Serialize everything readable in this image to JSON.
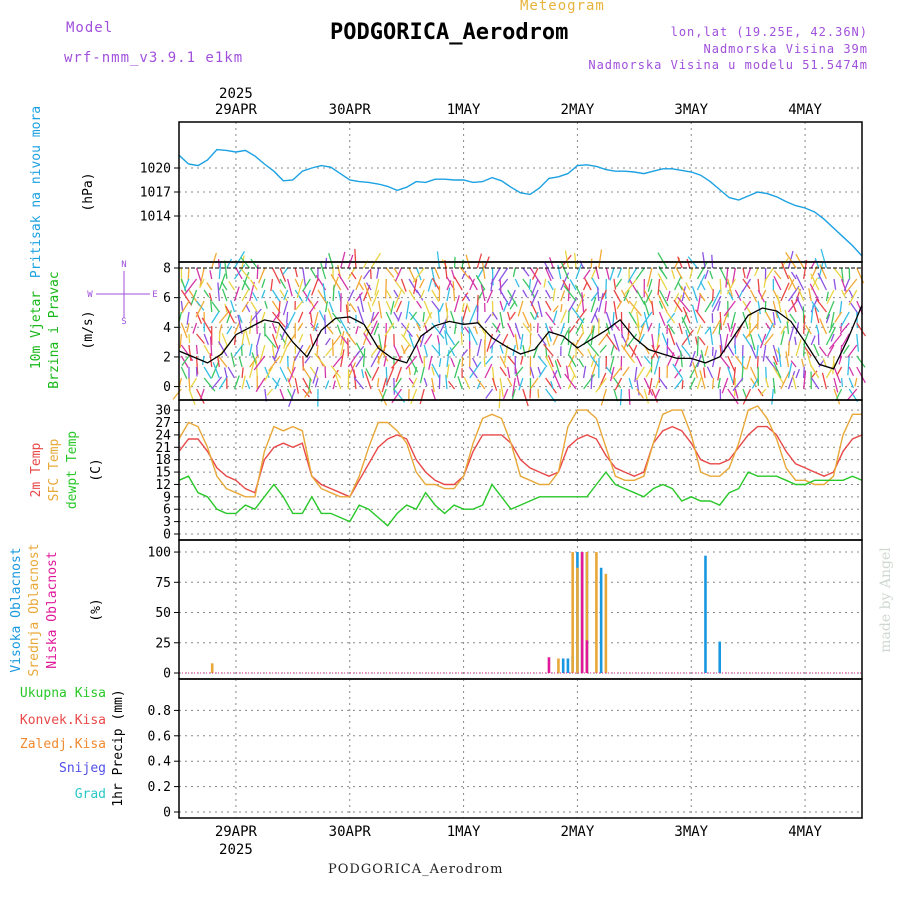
{
  "header": {
    "title": "PODGORICA_Aerodrom",
    "subtitle": "Meteogram",
    "model_label": "Model",
    "model_name": "wrf-nmm_v3.9.1 e1km",
    "coords": "lon,lat (19.25E, 42.36N)",
    "elevation": "Nadmorska Visina 39m",
    "model_elevation": "Nadmorska Visina u modelu 51.5474m"
  },
  "footer": {
    "station": "PODGORICA_Aerodrom",
    "credit": "made by Angel"
  },
  "colors": {
    "pressure": "#1ba1e2",
    "wind_speed": "#000000",
    "wind_label": "#18b818",
    "t2m": "#e84848",
    "tsfc": "#e8a838",
    "dewpt": "#28c828",
    "cloud_high": "#1898e0",
    "cloud_mid": "#e8a838",
    "cloud_low": "#e0189a",
    "precip_total": "#28c828",
    "precip_conv": "#e84848",
    "precip_frozen": "#f08a30",
    "precip_snow": "#5050e8",
    "precip_grad": "#28c8c8",
    "wind_compass": "#a050dc"
  },
  "chart_data": {
    "time_axis": {
      "start": "2025-04-28T12:00",
      "end": "2025-05-04T12:00",
      "year": "2025",
      "day_labels": [
        "29APR",
        "30APR",
        "1MAY",
        "2MAY",
        "3MAY",
        "4MAY"
      ],
      "day_times": [
        12,
        36,
        60,
        84,
        108,
        132
      ]
    },
    "panels": [
      {
        "id": "pressure",
        "type": "line",
        "ylabel": [
          "Pritisak na nivou mora",
          "(hPa)"
        ],
        "ylim": [
          1009,
          1025
        ],
        "yticks": [
          1014,
          1017,
          1020
        ],
        "series": [
          {
            "color_key": "pressure",
            "x": [
              0,
              2,
              4,
              6,
              8,
              10,
              12,
              14,
              16,
              18,
              20,
              22,
              24,
              26,
              28,
              30,
              32,
              34,
              36,
              38,
              40,
              42,
              44,
              46,
              48,
              50,
              52,
              54,
              56,
              58,
              60,
              62,
              64,
              66,
              68,
              70,
              72,
              74,
              76,
              78,
              80,
              82,
              84,
              86,
              88,
              90,
              92,
              94,
              96,
              98,
              100,
              102,
              104,
              106,
              108,
              110,
              112,
              114,
              116,
              118,
              120,
              122,
              124,
              126,
              128,
              130,
              132,
              134,
              136,
              138,
              140,
              142,
              144
            ],
            "values": [
              1021.6,
              1020.5,
              1020.3,
              1021.0,
              1022.3,
              1022.2,
              1022.0,
              1022.2,
              1021.5,
              1020.5,
              1019.6,
              1018.4,
              1018.5,
              1019.6,
              1020.0,
              1020.3,
              1020.1,
              1019.3,
              1018.5,
              1018.3,
              1018.2,
              1018.0,
              1017.7,
              1017.2,
              1017.6,
              1018.3,
              1018.2,
              1018.6,
              1018.6,
              1018.5,
              1018.5,
              1018.2,
              1018.3,
              1018.8,
              1018.4,
              1017.6,
              1016.9,
              1016.7,
              1017.5,
              1018.7,
              1018.9,
              1019.3,
              1020.3,
              1020.4,
              1020.2,
              1019.8,
              1019.6,
              1019.6,
              1019.5,
              1019.3,
              1019.6,
              1019.9,
              1019.9,
              1019.7,
              1019.5,
              1019.1,
              1018.3,
              1017.3,
              1016.3,
              1016.0,
              1016.5,
              1017.0,
              1016.8,
              1016.4,
              1015.8,
              1015.3,
              1015.0,
              1014.5,
              1013.6,
              1012.5,
              1011.4,
              1010.3,
              1009.0
            ]
          }
        ]
      },
      {
        "id": "wind",
        "type": "line",
        "ylabel": [
          "10m Vjetar",
          "Brzina i Pravac",
          "(m/s)"
        ],
        "compass": {
          "n": "N",
          "s": "S",
          "e": "E",
          "w": "W"
        },
        "ylim": [
          -0.5,
          8
        ],
        "yticks": [
          0,
          2,
          4,
          6,
          8
        ],
        "series": [
          {
            "color_key": "wind_speed",
            "x": [
              0,
              3,
              6,
              9,
              12,
              15,
              18,
              21,
              24,
              27,
              30,
              33,
              36,
              39,
              42,
              45,
              48,
              51,
              54,
              57,
              60,
              63,
              66,
              69,
              72,
              75,
              78,
              81,
              84,
              87,
              90,
              93,
              96,
              99,
              102,
              105,
              108,
              111,
              114,
              117,
              120,
              123,
              126,
              129,
              132,
              135,
              138,
              141,
              144
            ],
            "values": [
              2.4,
              2.0,
              1.6,
              2.2,
              3.5,
              4.0,
              4.5,
              4.3,
              3.0,
              2.0,
              3.8,
              4.6,
              4.7,
              4.2,
              2.6,
              1.9,
              1.6,
              3.4,
              4.1,
              4.4,
              4.2,
              4.3,
              3.3,
              2.7,
              2.2,
              2.5,
              3.7,
              3.4,
              2.6,
              3.2,
              3.8,
              4.5,
              3.3,
              2.5,
              2.2,
              1.9,
              1.9,
              1.6,
              2.0,
              3.4,
              4.8,
              5.3,
              5.1,
              4.4,
              3.0,
              1.5,
              1.2,
              3.2,
              5.5
            ]
          }
        ]
      },
      {
        "id": "temperature",
        "type": "line",
        "ylabel": [
          "2m Temp",
          "SFC Temp",
          "dewpt Temp",
          "(C)"
        ],
        "ylim": [
          0,
          31
        ],
        "yticks": [
          0,
          3,
          6,
          9,
          12,
          15,
          18,
          21,
          24,
          27,
          30
        ],
        "series": [
          {
            "name": "2m Temp",
            "color_key": "t2m",
            "x": [
              0,
              2,
              4,
              6,
              8,
              10,
              12,
              14,
              16,
              18,
              20,
              22,
              24,
              26,
              28,
              30,
              32,
              34,
              36,
              38,
              40,
              42,
              44,
              46,
              48,
              50,
              52,
              54,
              56,
              58,
              60,
              62,
              64,
              66,
              68,
              70,
              72,
              74,
              76,
              78,
              80,
              82,
              84,
              86,
              88,
              90,
              92,
              94,
              96,
              98,
              100,
              102,
              104,
              106,
              108,
              110,
              112,
              114,
              116,
              118,
              120,
              122,
              124,
              126,
              128,
              130,
              132,
              134,
              136,
              138,
              140,
              142,
              144
            ],
            "values": [
              20,
              23,
              23,
              20,
              16,
              14,
              13,
              11,
              10,
              18,
              21,
              22,
              21,
              22,
              14,
              12,
              11,
              10,
              9,
              13,
              17,
              21,
              23,
              24,
              23,
              18,
              15,
              13,
              12,
              12,
              14,
              20,
              24,
              24,
              24,
              22,
              18,
              16,
              15,
              14,
              15,
              21,
              23,
              24,
              23,
              19,
              16,
              15,
              14,
              15,
              22,
              25,
              26,
              25,
              22,
              18,
              17,
              17,
              18,
              21,
              24,
              26,
              26,
              24,
              20,
              17,
              16,
              15,
              14,
              15,
              20,
              23,
              24
            ]
          },
          {
            "name": "SFC Temp",
            "color_key": "tsfc",
            "x": [
              0,
              2,
              4,
              6,
              8,
              10,
              12,
              14,
              16,
              18,
              20,
              22,
              24,
              26,
              28,
              30,
              32,
              34,
              36,
              38,
              40,
              42,
              44,
              46,
              48,
              50,
              52,
              54,
              56,
              58,
              60,
              62,
              64,
              66,
              68,
              70,
              72,
              74,
              76,
              78,
              80,
              82,
              84,
              86,
              88,
              90,
              92,
              94,
              96,
              98,
              100,
              102,
              104,
              106,
              108,
              110,
              112,
              114,
              116,
              118,
              120,
              122,
              124,
              126,
              128,
              130,
              132,
              134,
              136,
              138,
              140,
              142,
              144
            ],
            "values": [
              23,
              27,
              26,
              21,
              14,
              11,
              10,
              9,
              9,
              20,
              26,
              25,
              26,
              25,
              14,
              11,
              10,
              9,
              9,
              14,
              21,
              27,
              27,
              25,
              22,
              15,
              12,
              12,
              11,
              11,
              14,
              22,
              28,
              29,
              28,
              22,
              14,
              13,
              12,
              12,
              15,
              26,
              30,
              30,
              28,
              21,
              14,
              13,
              13,
              14,
              22,
              29,
              30,
              30,
              24,
              15,
              14,
              14,
              16,
              22,
              30,
              31,
              28,
              23,
              16,
              13,
              13,
              12,
              12,
              14,
              24,
              29,
              29
            ]
          },
          {
            "name": "dewpt Temp",
            "color_key": "dewpt",
            "x": [
              0,
              2,
              4,
              6,
              8,
              10,
              12,
              14,
              16,
              18,
              20,
              22,
              24,
              26,
              28,
              30,
              32,
              34,
              36,
              38,
              40,
              42,
              44,
              46,
              48,
              50,
              52,
              54,
              56,
              58,
              60,
              62,
              64,
              66,
              68,
              70,
              72,
              74,
              76,
              78,
              80,
              82,
              84,
              86,
              88,
              90,
              92,
              94,
              96,
              98,
              100,
              102,
              104,
              106,
              108,
              110,
              112,
              114,
              116,
              118,
              120,
              122,
              124,
              126,
              128,
              130,
              132,
              134,
              136,
              138,
              140,
              142,
              144
            ],
            "values": [
              13,
              14,
              10,
              9,
              6,
              5,
              5,
              7,
              6,
              9,
              12,
              9,
              5,
              5,
              9,
              5,
              5,
              4,
              3,
              7,
              6,
              4,
              2,
              5,
              7,
              6,
              10,
              7,
              5,
              7,
              6,
              6,
              7,
              12,
              9,
              6,
              7,
              8,
              9,
              9,
              9,
              9,
              9,
              9,
              12,
              15,
              12,
              11,
              10,
              9,
              11,
              12,
              11,
              8,
              9,
              8,
              8,
              7,
              10,
              11,
              15,
              14,
              14,
              14,
              13,
              12,
              12,
              13,
              13,
              13,
              13,
              14,
              13
            ]
          }
        ]
      },
      {
        "id": "clouds",
        "type": "bar",
        "ylabel": [
          "Visoka Oblacnost",
          "Srednja Oblacnost",
          "Niska Oblacnost",
          "(%)"
        ],
        "ylim": [
          0,
          105
        ],
        "yticks": [
          0,
          25,
          50,
          75,
          100
        ],
        "series": [
          {
            "name": "Visoka Oblacnost",
            "color_key": "cloud_high",
            "x": [
              81,
              82,
              83,
              84,
              85,
              86,
              89,
              111,
              114
            ],
            "values": [
              12,
              12,
              14,
              100,
              100,
              100,
              87,
              97,
              26
            ]
          },
          {
            "name": "Srednja Oblacnost",
            "color_key": "cloud_mid",
            "x": [
              7,
              80,
              83,
              84,
              85,
              86,
              88,
              90
            ],
            "values": [
              8,
              12,
              100,
              87,
              100,
              100,
              100,
              82
            ]
          },
          {
            "name": "Niska Oblacnost",
            "color_key": "cloud_low",
            "x": [
              78,
              85,
              86
            ],
            "values": [
              13,
              100,
              27
            ]
          }
        ]
      },
      {
        "id": "precip",
        "type": "bar",
        "ylabel": [
          "Ukupna Kisa",
          "Konvek.Kisa",
          "Zaledj.Kisa",
          "Snijeg",
          "Grad",
          "1hr Precip (mm)"
        ],
        "ylim": [
          0,
          1.0
        ],
        "yticks": [
          0,
          0.2,
          0.4,
          0.6,
          0.8
        ],
        "series": []
      }
    ]
  }
}
